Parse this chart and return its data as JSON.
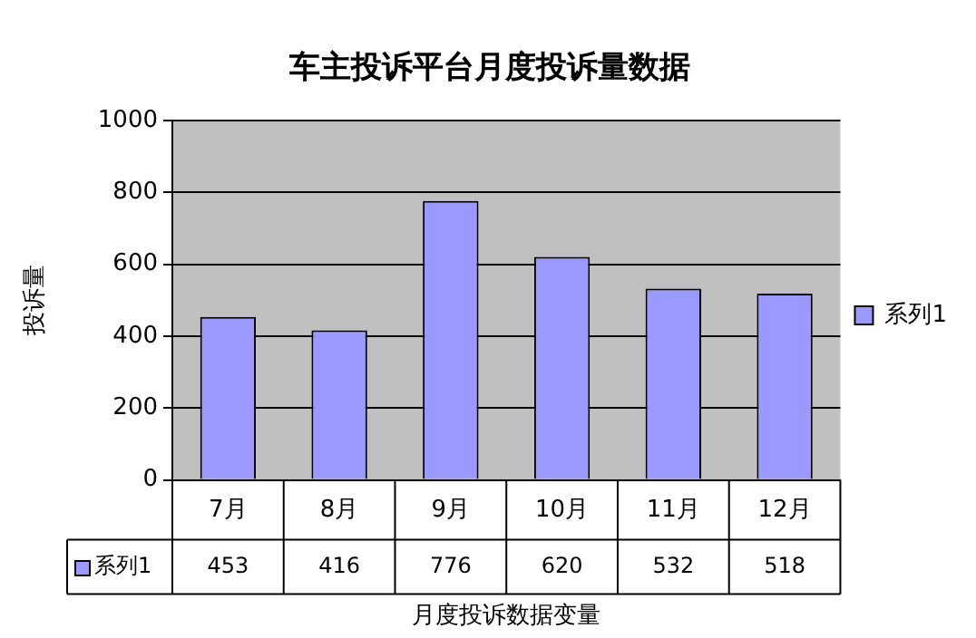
{
  "chart_data": {
    "type": "bar",
    "title": "车主投诉平台月度投诉量数据",
    "xlabel": "月度投诉数据变量",
    "ylabel": "投诉量",
    "categories": [
      "7月",
      "8月",
      "9月",
      "10月",
      "11月",
      "12月"
    ],
    "series": [
      {
        "name": "系列1",
        "color": "#9999ff",
        "values": [
          453,
          416,
          776,
          620,
          532,
          518
        ]
      }
    ],
    "ylim": [
      0,
      1000
    ],
    "yticks": [
      0,
      200,
      400,
      600,
      800,
      1000
    ],
    "grid": "y",
    "legend": "right",
    "data_labels": true
  }
}
